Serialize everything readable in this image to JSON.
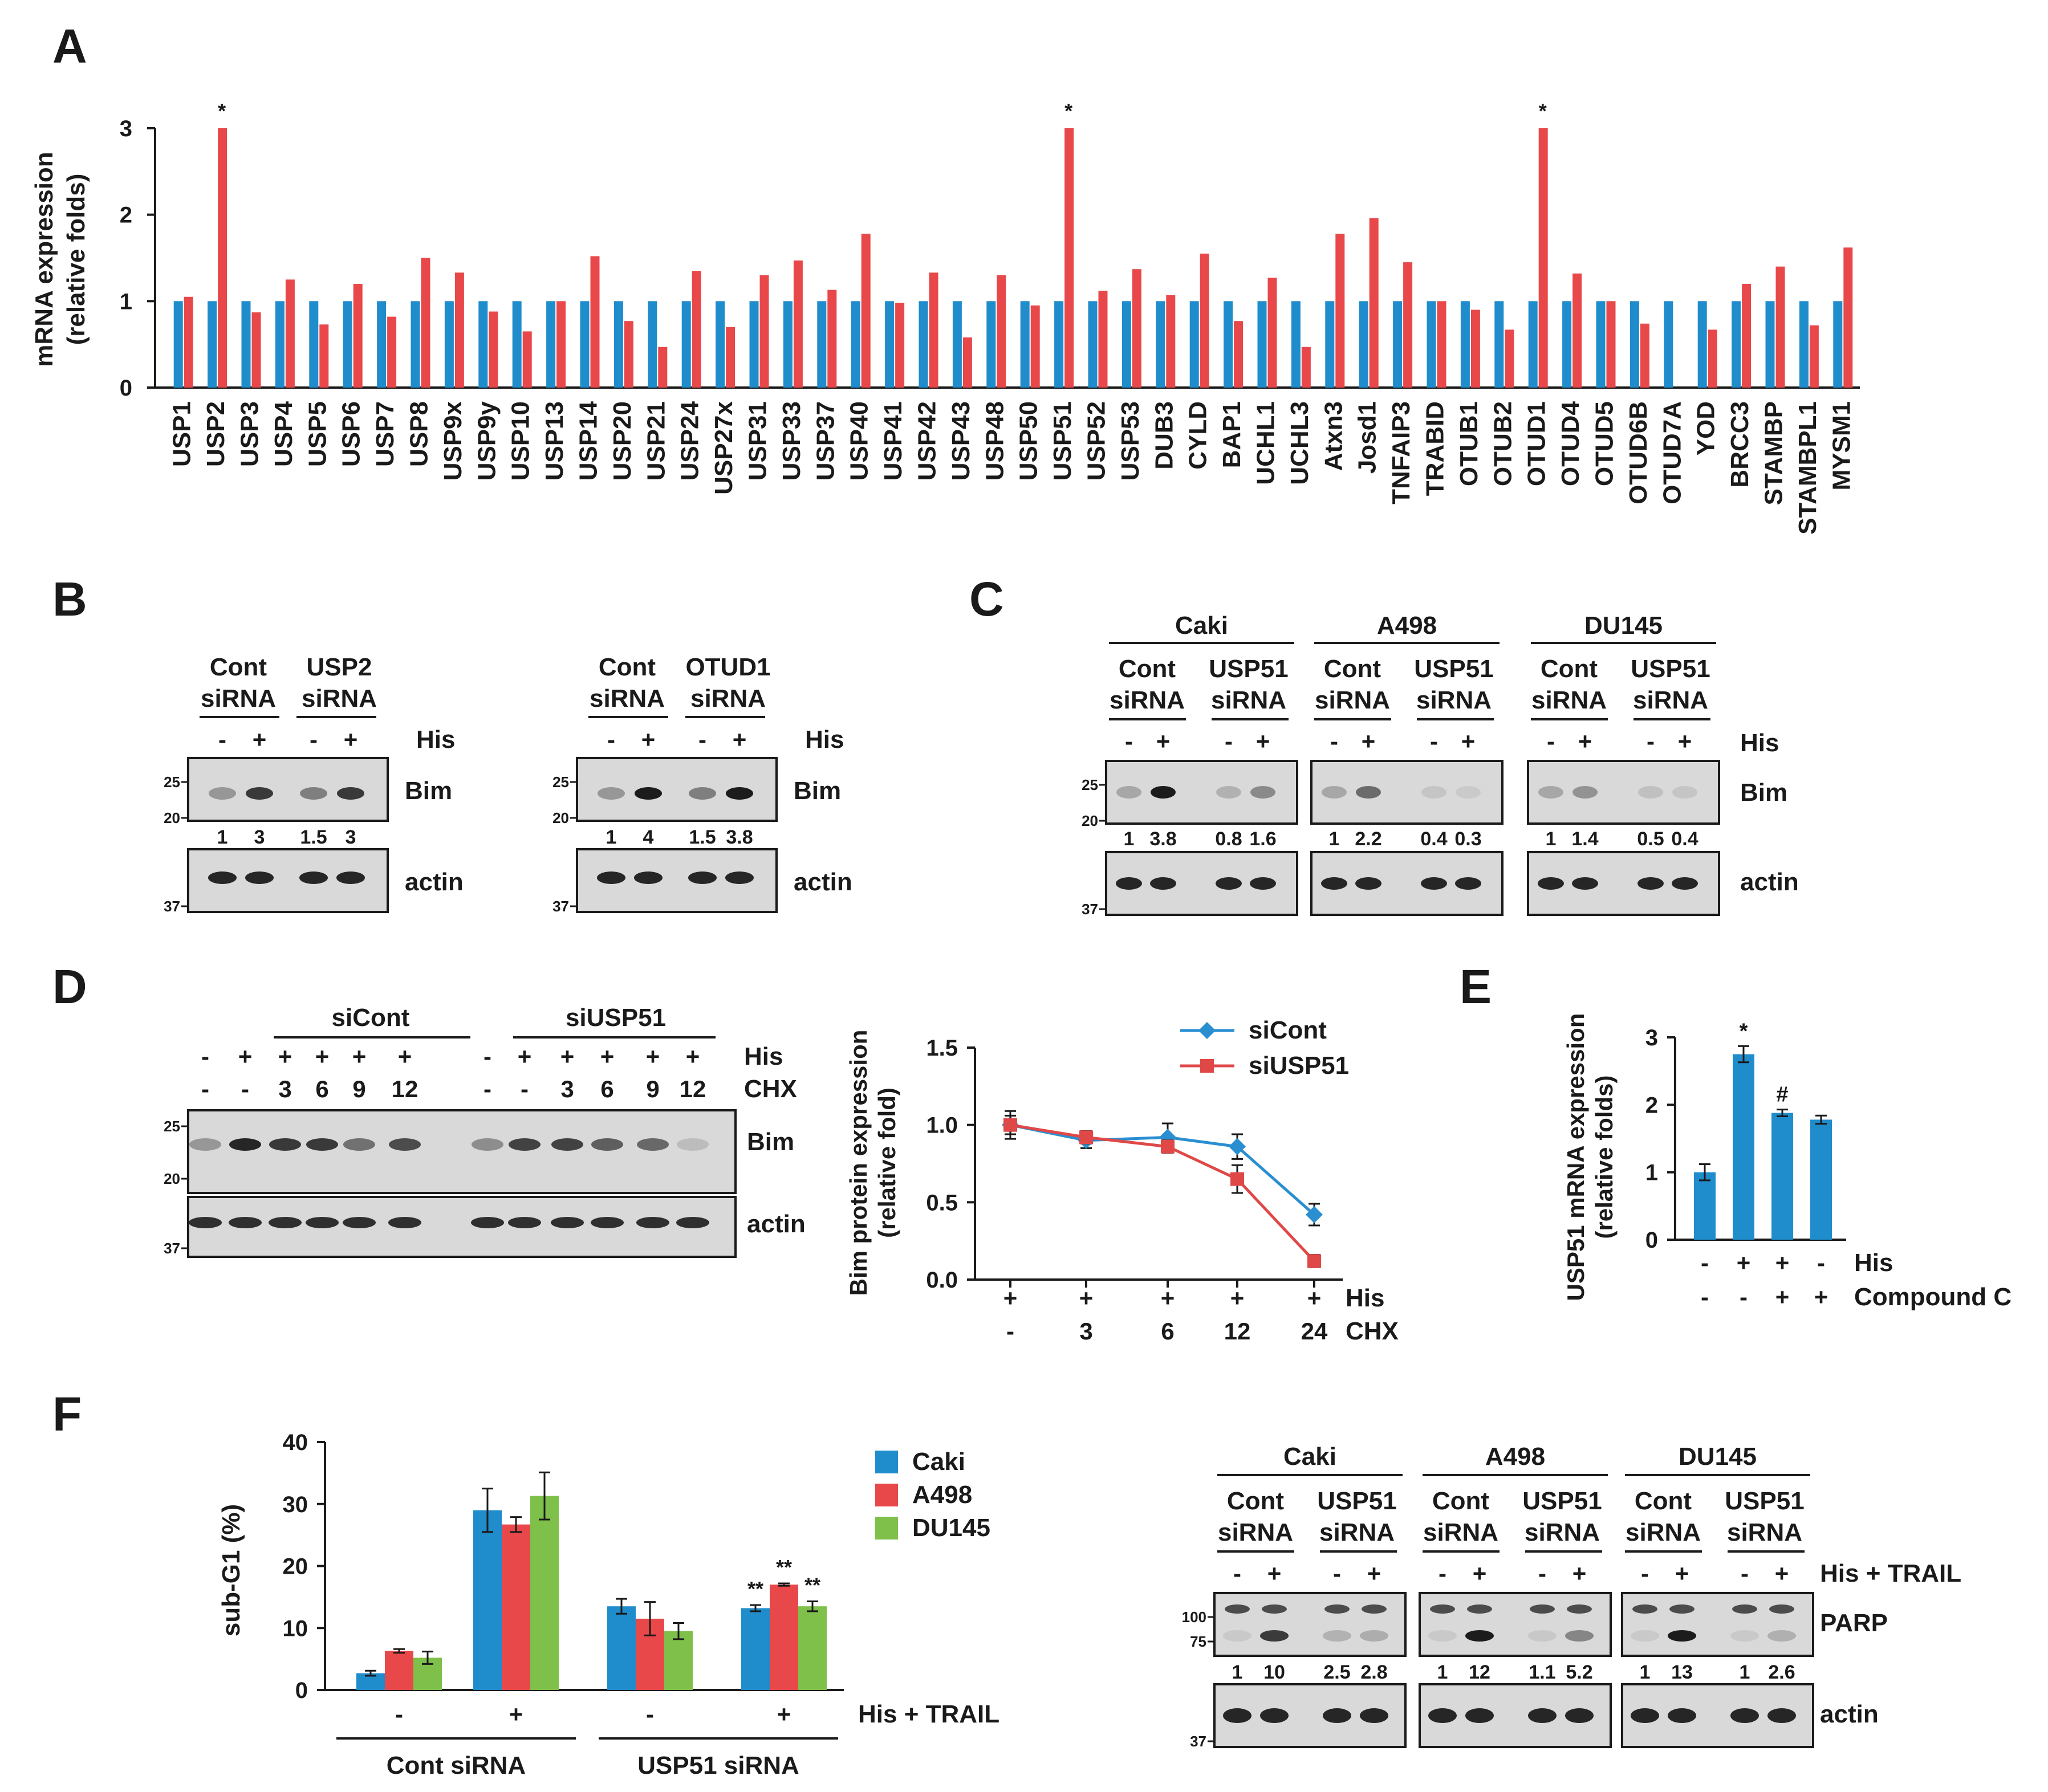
{
  "colors": {
    "blue": "#1f8ccc",
    "red": "#e8484a",
    "green": "#7ec04a",
    "line_blue": "#2a8fd0",
    "line_red": "#e04848",
    "blot_bg": "#d9d9d9",
    "band": "#1c1c1c"
  },
  "panels": {
    "A": "A",
    "B": "B",
    "C": "C",
    "D": "D",
    "E": "E",
    "F": "F"
  },
  "chart_data": [
    {
      "id": "A",
      "type": "bar",
      "ylabel_line1": "mRNA expression",
      "ylabel_line2": "(relative  folds)",
      "ylim": [
        0,
        3
      ],
      "yticks": [
        "0",
        "1",
        "2",
        "3"
      ],
      "categories": [
        "USP1",
        "USP2",
        "USP3",
        "USP4",
        "USP5",
        "USP6",
        "USP7",
        "USP8",
        "USP9x",
        "USP9y",
        "USP10",
        "USP13",
        "USP14",
        "USP20",
        "USP21",
        "USP24",
        "USP27x",
        "USP31",
        "USP33",
        "USP37",
        "USP40",
        "USP41",
        "USP42",
        "USP43",
        "USP48",
        "USP50",
        "USP51",
        "USP52",
        "USP53",
        "DUB3",
        "CYLD",
        "BAP1",
        "UCHL1",
        "UCHL3",
        "Atxn3",
        "Josd1",
        "TNFAIP3",
        "TRABID",
        "OTUB1",
        "OTUB2",
        "OTUD1",
        "OTUD4",
        "OTUD5",
        "OTUD6B",
        "OTUD7A",
        "YOD",
        "BRCC3",
        "STAMBP",
        "STAMBPL1",
        "MYSM1"
      ],
      "series": [
        {
          "values": [
            1,
            1,
            1,
            1,
            1,
            1,
            1,
            1,
            1,
            1,
            1,
            1,
            1,
            1,
            1,
            1,
            1,
            1,
            1,
            1,
            1,
            1,
            1,
            1,
            1,
            1,
            1,
            1,
            1,
            1,
            1,
            1,
            1,
            1,
            1,
            1,
            1,
            1,
            1,
            1,
            1,
            1,
            1,
            1,
            1,
            1,
            1,
            1,
            1,
            1
          ]
        },
        {
          "values": [
            1.05,
            3.0,
            0.87,
            1.25,
            0.73,
            1.2,
            0.82,
            1.5,
            1.33,
            0.88,
            0.65,
            1.0,
            1.52,
            0.77,
            0.47,
            1.35,
            0.7,
            1.3,
            1.47,
            1.13,
            1.78,
            0.98,
            1.33,
            0.58,
            1.3,
            0.95,
            3.0,
            1.12,
            1.37,
            1.07,
            1.55,
            0.77,
            1.27,
            0.47,
            1.78,
            1.96,
            1.45,
            1.0,
            0.9,
            0.67,
            3.0,
            1.32,
            1.0,
            0.74,
            0.0,
            0.67,
            1.2,
            1.4,
            0.72,
            1.62
          ]
        }
      ],
      "stars": [
        "*",
        "*",
        "*"
      ],
      "star_indices": [
        1,
        26,
        40
      ]
    },
    {
      "id": "D-graph",
      "type": "line",
      "ylabel_line1": "Bim protein expression",
      "ylabel_line2": "(relative fold)",
      "ylim": [
        0,
        1.5
      ],
      "yticks": [
        "0.0",
        "0.5",
        "1.0",
        "1.5"
      ],
      "his_row": [
        "+",
        "+",
        "+",
        "+",
        "+"
      ],
      "chx_row": [
        "-",
        "3",
        "6",
        "12",
        "24"
      ],
      "his_label": "His",
      "chx_label": "CHX",
      "series": [
        {
          "name": "siCont",
          "values": [
            1.0,
            0.9,
            0.92,
            0.86,
            0.42
          ],
          "errors": [
            0.09,
            0.05,
            0.09,
            0.08,
            0.07
          ]
        },
        {
          "name": "siUSP51",
          "values": [
            1.0,
            0.92,
            0.86,
            0.65,
            0.12
          ],
          "errors": [
            0.06,
            0.04,
            0.04,
            0.09,
            0.04
          ]
        }
      ]
    },
    {
      "id": "E",
      "type": "bar",
      "ylabel_line1": "USP51 mRNA expression",
      "ylabel_line2": "(relative  folds)",
      "ylim": [
        0,
        3
      ],
      "yticks": [
        "0",
        "1",
        "2",
        "3"
      ],
      "values": [
        1.0,
        2.75,
        1.88,
        1.78
      ],
      "errors": [
        0.12,
        0.12,
        0.05,
        0.06
      ],
      "marks": [
        "",
        "*",
        "#",
        ""
      ],
      "his_row": [
        "-",
        "+",
        "+",
        "-"
      ],
      "compound_row": [
        "-",
        "-",
        "+",
        "+"
      ],
      "his_label": "His",
      "compound_label": "Compound C"
    },
    {
      "id": "F-graph",
      "type": "bar",
      "ylabel": "sub-G1 (%)",
      "ylim": [
        0,
        40
      ],
      "yticks": [
        "0",
        "10",
        "20",
        "30",
        "40"
      ],
      "groups": [
        "-",
        "+",
        "-",
        "+"
      ],
      "group_label": "His + TRAIL",
      "group_names": [
        "Cont siRNA",
        "USP51 siRNA"
      ],
      "series": [
        {
          "name": "Caki",
          "values": [
            2.7,
            29.0,
            13.5,
            13.2
          ],
          "errors": [
            0.4,
            3.5,
            1.2,
            0.5
          ]
        },
        {
          "name": "A498",
          "values": [
            6.3,
            26.7,
            11.5,
            17.0
          ],
          "errors": [
            0.3,
            1.2,
            2.7,
            0.2
          ]
        },
        {
          "name": "DU145",
          "values": [
            5.2,
            31.3,
            9.5,
            13.5
          ],
          "errors": [
            1.0,
            3.8,
            1.3,
            0.8
          ]
        }
      ],
      "marks": [
        [
          "",
          "",
          ""
        ],
        [
          "",
          "",
          ""
        ],
        [
          "",
          "",
          ""
        ],
        [
          "**",
          "**",
          "**"
        ]
      ]
    }
  ],
  "blots": {
    "B1": {
      "conditions": [
        "Cont",
        "siRNA",
        "USP2",
        "siRNA"
      ],
      "signs": [
        "-",
        "+",
        "-",
        "+"
      ],
      "his": "His",
      "protein": "Bim",
      "loading": "actin",
      "quant": [
        "1",
        "3",
        "1.5",
        "3"
      ],
      "mw_top": [
        "25",
        "20"
      ],
      "mw_bottom": "37"
    },
    "B2": {
      "conditions": [
        "Cont",
        "siRNA",
        "OTUD1",
        "siRNA"
      ],
      "signs": [
        "-",
        "+",
        "-",
        "+"
      ],
      "his": "His",
      "protein": "Bim",
      "loading": "actin",
      "quant": [
        "1",
        "4",
        "1.5",
        "3.8"
      ],
      "mw_top": [
        "25",
        "20"
      ],
      "mw_bottom": "37"
    },
    "C": {
      "cells": [
        "Caki",
        "A498",
        "DU145"
      ],
      "conditions": [
        "Cont",
        "siRNA",
        "USP51",
        "siRNA"
      ],
      "signs": [
        "-",
        "+",
        "-",
        "+"
      ],
      "his": "His",
      "protein": "Bim",
      "loading": "actin",
      "quant": [
        [
          "1",
          "3.8",
          "0.8",
          "1.6"
        ],
        [
          "1",
          "2.2",
          "0.4",
          "0.3"
        ],
        [
          "1",
          "1.4",
          "0.5",
          "0.4"
        ]
      ],
      "mw_top": [
        "25",
        "20"
      ],
      "mw_bottom": "37"
    },
    "D": {
      "group1": "siCont",
      "group2": "siUSP51",
      "his_signs": [
        "-",
        "+",
        "+",
        "+",
        "+",
        "+",
        "-",
        "+",
        "+",
        "+",
        "+",
        "+"
      ],
      "chx_signs": [
        "-",
        "-",
        "3",
        "6",
        "9",
        "12",
        "-",
        "-",
        "3",
        "6",
        "9",
        "12"
      ],
      "his": "His",
      "chx": "CHX",
      "protein": "Bim",
      "loading": "actin",
      "mw_top": [
        "25",
        "20"
      ],
      "mw_bottom": "37"
    },
    "F": {
      "cells": [
        "Caki",
        "A498",
        "DU145"
      ],
      "conditions": [
        "Cont",
        "siRNA",
        "USP51",
        "siRNA"
      ],
      "signs": [
        "-",
        "+",
        "-",
        "+"
      ],
      "treat": "His + TRAIL",
      "protein": "PARP",
      "loading": "actin",
      "quant": [
        [
          "1",
          "10",
          "2.5",
          "2.8"
        ],
        [
          "1",
          "12",
          "1.1",
          "5.2"
        ],
        [
          "1",
          "13",
          "1",
          "2.6"
        ]
      ],
      "mw_top": [
        "100",
        "75"
      ],
      "mw_bottom": "37"
    }
  }
}
